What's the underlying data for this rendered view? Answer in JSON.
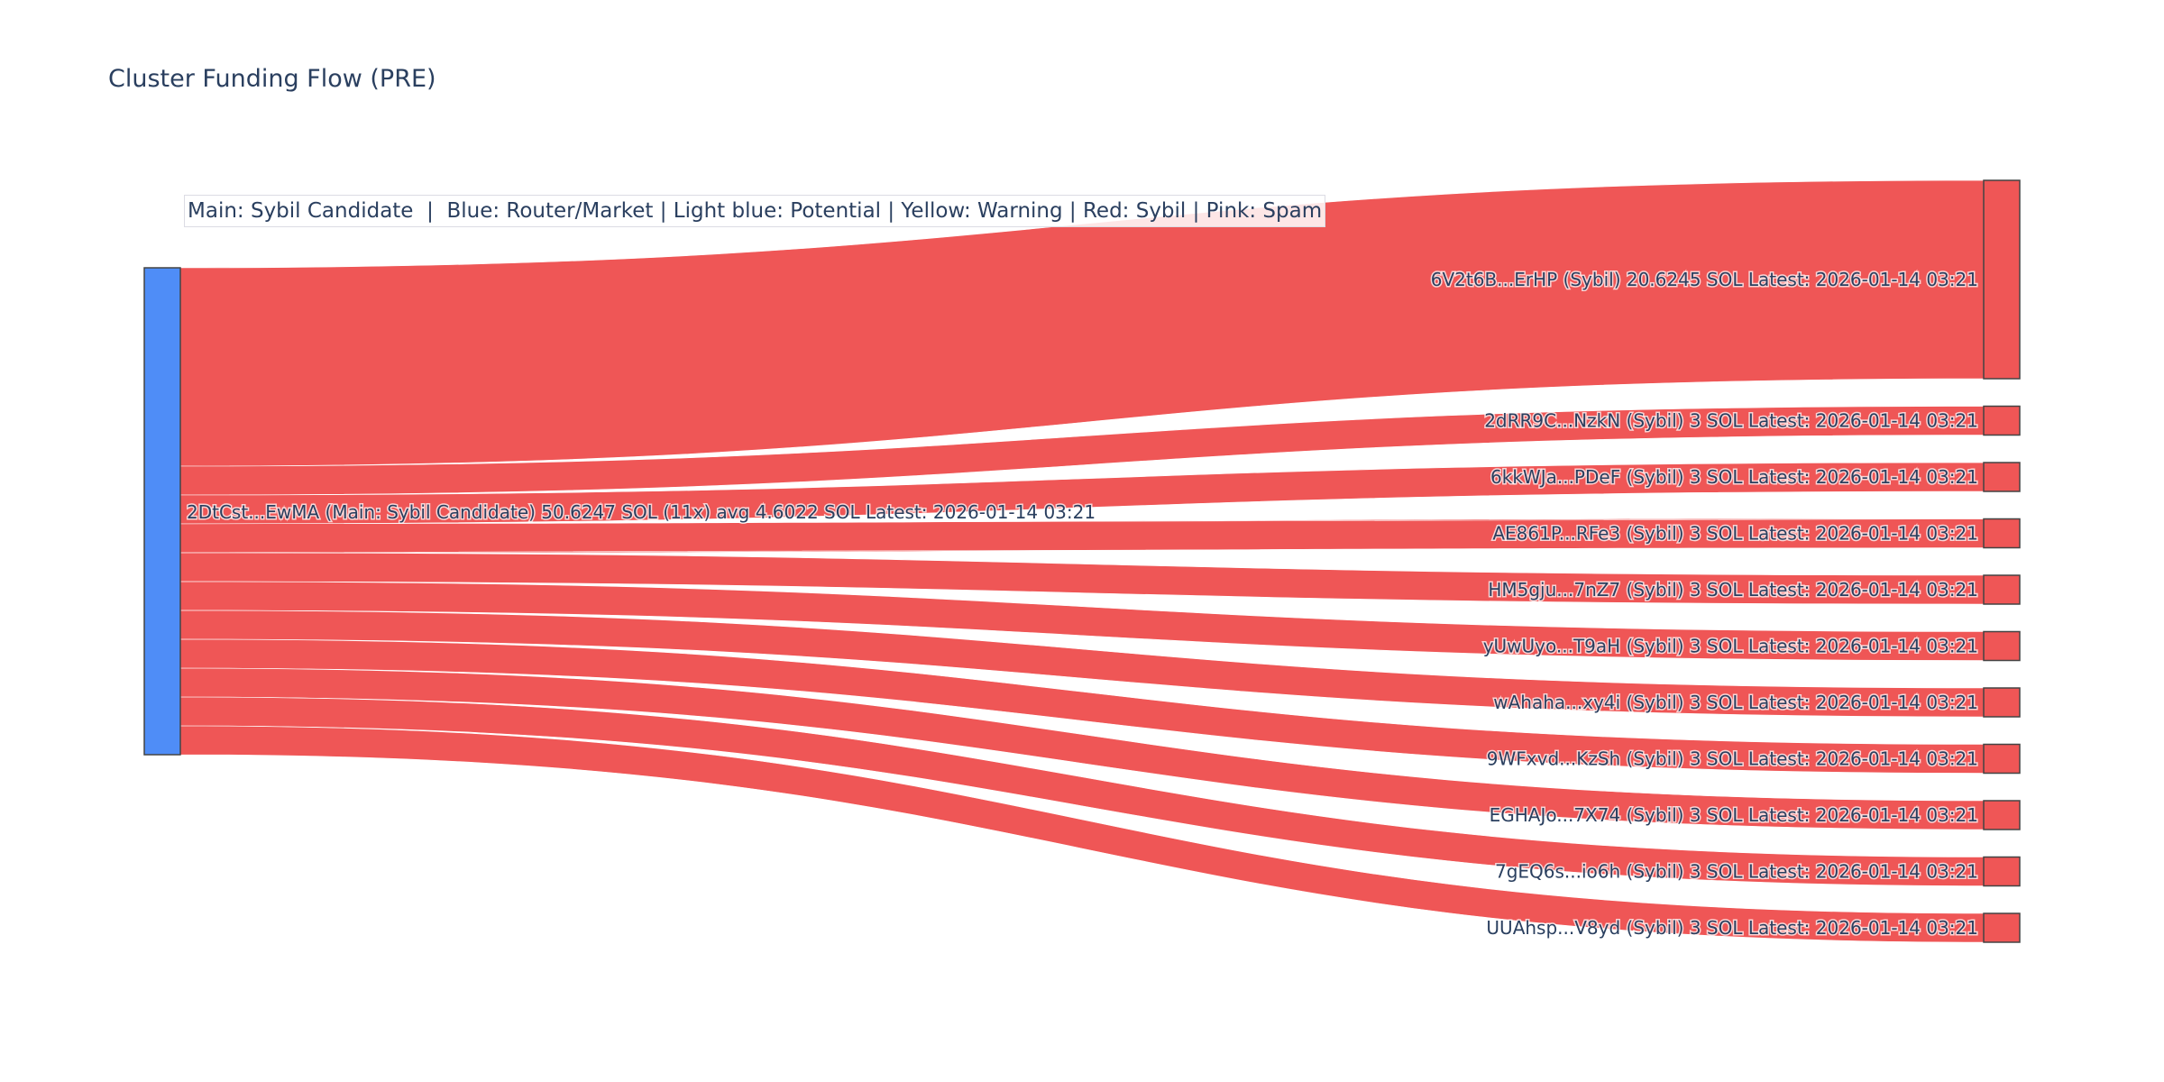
{
  "title": "Cluster Funding Flow (PRE)",
  "legend": "Main: Sybil Candidate  |  Blue: Router/Market | Light blue: Potential | Yellow: Warning | Red: Sybil | Pink: Spam",
  "colors": {
    "main": "#4f8df7",
    "sybil": "#ef5656",
    "link": "#ef5656",
    "text": "#2a3f5f"
  },
  "chart_data": {
    "type": "sankey",
    "source": {
      "label": "2DtCst...EwMA (Main: Sybil Candidate) 50.6247 SOL (11x) avg 4.6022 SOL Latest: 2026-01-14 03:21",
      "value": 50.6247,
      "category": "Main"
    },
    "targets": [
      {
        "label": "6V2t6B...ErHP (Sybil) 20.6245 SOL Latest: 2026-01-14 03:21",
        "value": 20.6245,
        "category": "Sybil"
      },
      {
        "label": "2dRR9C...NzkN (Sybil) 3 SOL Latest: 2026-01-14 03:21",
        "value": 3,
        "category": "Sybil"
      },
      {
        "label": "6kkWJa...PDeF (Sybil) 3 SOL Latest: 2026-01-14 03:21",
        "value": 3,
        "category": "Sybil"
      },
      {
        "label": "AE861P...RFe3 (Sybil) 3 SOL Latest: 2026-01-14 03:21",
        "value": 3,
        "category": "Sybil"
      },
      {
        "label": "HM5gju...7nZ7 (Sybil) 3 SOL Latest: 2026-01-14 03:21",
        "value": 3,
        "category": "Sybil"
      },
      {
        "label": "yUwUyo...T9aH (Sybil) 3 SOL Latest: 2026-01-14 03:21",
        "value": 3,
        "category": "Sybil"
      },
      {
        "label": "wAhaha...xy4i (Sybil) 3 SOL Latest: 2026-01-14 03:21",
        "value": 3,
        "category": "Sybil"
      },
      {
        "label": "9WFxvd...KzSh (Sybil) 3 SOL Latest: 2026-01-14 03:21",
        "value": 3,
        "category": "Sybil"
      },
      {
        "label": "EGHAJo...7X74 (Sybil) 3 SOL Latest: 2026-01-14 03:21",
        "value": 3,
        "category": "Sybil"
      },
      {
        "label": "7gEQ6s...io6h (Sybil) 3 SOL Latest: 2026-01-14 03:21",
        "value": 3,
        "category": "Sybil"
      },
      {
        "label": "UUAhsp...V8yd (Sybil) 3 SOL Latest: 2026-01-14 03:21",
        "value": 3,
        "category": "Sybil"
      }
    ]
  }
}
